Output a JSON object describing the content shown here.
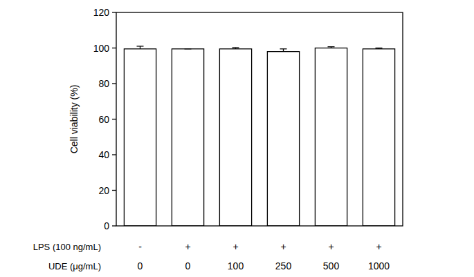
{
  "chart_data": {
    "type": "bar",
    "y_label": "Cell viability (%)",
    "categories": [
      "0",
      "0",
      "100",
      "250",
      "500",
      "1000"
    ],
    "categories_label": "UDE (μg/mL)",
    "lps": [
      "-",
      "+",
      "+",
      "+",
      "+",
      "+"
    ],
    "lps_label": "LPS (100 ng/mL)",
    "values": [
      99.5,
      99.5,
      99.5,
      98,
      100,
      99.5
    ],
    "errors": [
      1.5,
      0,
      0.7,
      1.5,
      0.7,
      0.5
    ],
    "color": "#ffffff",
    "ylim": [
      0,
      120
    ],
    "yticks": [
      0,
      20,
      40,
      60,
      80,
      100,
      120
    ],
    "grid": false
  }
}
